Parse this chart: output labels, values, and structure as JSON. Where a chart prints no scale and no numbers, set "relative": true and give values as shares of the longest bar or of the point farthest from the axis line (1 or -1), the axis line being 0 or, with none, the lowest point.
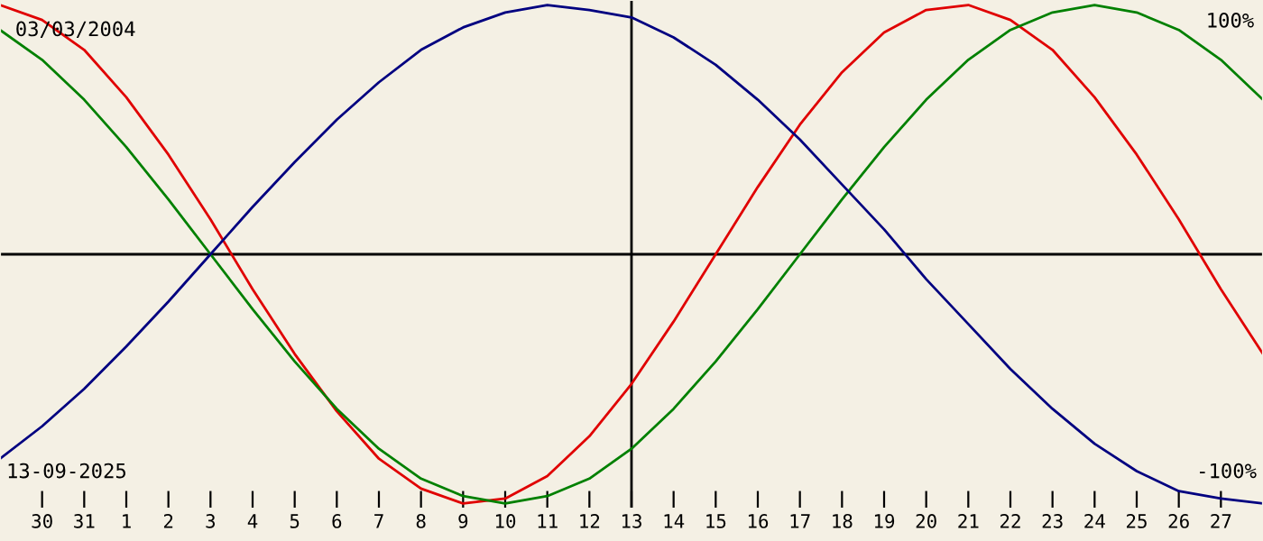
{
  "chart_data": {
    "type": "line",
    "relative": true,
    "x": [
      "2025-08-29",
      "2025-08-30",
      "2025-08-31",
      "2025-09-01",
      "2025-09-02",
      "2025-09-03",
      "2025-09-04",
      "2025-09-05",
      "2025-09-06",
      "2025-09-07",
      "2025-09-08",
      "2025-09-09",
      "2025-09-10",
      "2025-09-11",
      "2025-09-12",
      "2025-09-13",
      "2025-09-14",
      "2025-09-15",
      "2025-09-16",
      "2025-09-17",
      "2025-09-18",
      "2025-09-19",
      "2025-09-20",
      "2025-09-21",
      "2025-09-22",
      "2025-09-23",
      "2025-09-24",
      "2025-09-25",
      "2025-09-26",
      "2025-09-27",
      "2025-09-28"
    ],
    "series": [
      {
        "color": "#e00000",
        "values": [
          1,
          0.94,
          0.82,
          0.63,
          0.4,
          0.14,
          -0.14,
          -0.4,
          -0.63,
          -0.82,
          -0.94,
          -1,
          -0.98,
          -0.89,
          -0.73,
          -0.52,
          -0.27,
          0,
          0.27,
          0.52,
          0.73,
          0.89,
          0.98,
          1,
          0.94,
          0.82,
          0.63,
          0.4,
          0.14,
          -0.14,
          -0.4
        ]
      },
      {
        "color": "#008000",
        "values": [
          0.9,
          0.78,
          0.62,
          0.43,
          0.22,
          0,
          -0.22,
          -0.43,
          -0.62,
          -0.78,
          -0.9,
          -0.97,
          -1,
          -0.97,
          -0.9,
          -0.78,
          -0.62,
          -0.43,
          -0.22,
          0,
          0.22,
          0.43,
          0.62,
          0.78,
          0.9,
          0.97,
          1,
          0.97,
          0.9,
          0.78,
          0.62
        ]
      },
      {
        "color": "#000080",
        "values": [
          -0.82,
          -0.69,
          -0.54,
          -0.37,
          -0.19,
          0,
          0.19,
          0.37,
          0.54,
          0.69,
          0.82,
          0.91,
          0.97,
          1,
          0.98,
          0.95,
          0.87,
          0.76,
          0.62,
          0.46,
          0.28,
          0.1,
          -0.1,
          -0.28,
          -0.46,
          -0.62,
          -0.76,
          -0.87,
          -0.95,
          -0.98,
          -1
        ]
      }
    ],
    "xlim": [
      "2025-08-29",
      "2025-09-28"
    ],
    "xticks": [
      {
        "value": "2025-08-30",
        "label": "30"
      },
      {
        "value": "2025-08-31",
        "label": "31"
      },
      {
        "value": "2025-09-01",
        "label": "1"
      },
      {
        "value": "2025-09-02",
        "label": "2"
      },
      {
        "value": "2025-09-03",
        "label": "3"
      },
      {
        "value": "2025-09-04",
        "label": "4"
      },
      {
        "value": "2025-09-05",
        "label": "5"
      },
      {
        "value": "2025-09-06",
        "label": "6"
      },
      {
        "value": "2025-09-07",
        "label": "7"
      },
      {
        "value": "2025-09-08",
        "label": "8"
      },
      {
        "value": "2025-09-09",
        "label": "9"
      },
      {
        "value": "2025-09-10",
        "label": "10"
      },
      {
        "value": "2025-09-11",
        "label": "11"
      },
      {
        "value": "2025-09-12",
        "label": "12"
      },
      {
        "value": "2025-09-13",
        "label": "13"
      },
      {
        "value": "2025-09-14",
        "label": "14"
      },
      {
        "value": "2025-09-15",
        "label": "15"
      },
      {
        "value": "2025-09-16",
        "label": "16"
      },
      {
        "value": "2025-09-17",
        "label": "17"
      },
      {
        "value": "2025-09-18",
        "label": "18"
      },
      {
        "value": "2025-09-19",
        "label": "19"
      },
      {
        "value": "2025-09-20",
        "label": "20"
      },
      {
        "value": "2025-09-21",
        "label": "21"
      },
      {
        "value": "2025-09-22",
        "label": "22"
      },
      {
        "value": "2025-09-23",
        "label": "23"
      },
      {
        "value": "2025-09-24",
        "label": "24"
      },
      {
        "value": "2025-09-25",
        "label": "25"
      },
      {
        "value": "2025-09-26",
        "label": "26"
      },
      {
        "value": "2025-09-27",
        "label": "27"
      }
    ],
    "ref_lines": [
      {
        "axis": "y",
        "value": 0,
        "color": "#000000"
      },
      {
        "axis": "x",
        "value": "2025-09-13",
        "color": "#000000"
      }
    ],
    "annotations": [
      "03/03/2004",
      "13-09-2025",
      "100%",
      "-100%"
    ],
    "grid": false,
    "legend": false,
    "marker": "none",
    "line_style": "solid"
  }
}
